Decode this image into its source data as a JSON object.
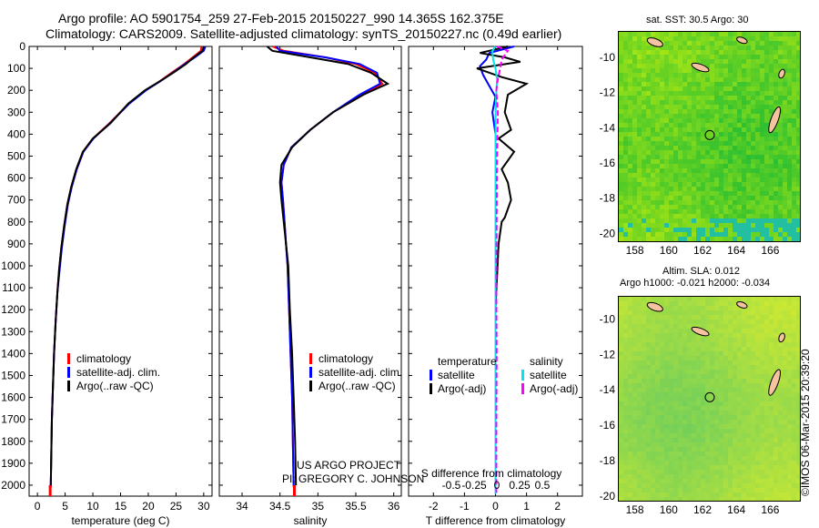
{
  "header": {
    "line1": "Argo profile: AO 5901754_259 27-Feb-2015 20150227_990 14.365S 162.375E",
    "line2": "Climatology: CARS2009. Satellite-adjusted climatology: synTS_20150227.nc (0.49d earlier)"
  },
  "credit": "©IMOS 06-Mar-2015 20:39:20",
  "project_note": {
    "line1": "US ARGO PROJECT",
    "line2": "PI: GREGORY C. JOHNSON"
  },
  "colors": {
    "climatology": "#ff0000",
    "satellite_adj": "#0000ff",
    "argo": "#000000",
    "sal_satellite": "#00e5ee",
    "sal_argo": "#ff00ff"
  },
  "chart_data": [
    {
      "type": "line",
      "id": "temperature",
      "xlabel": "temperature (deg C)",
      "ylabel": "",
      "xlim": [
        -1.5,
        31.5
      ],
      "ylim": [
        2050,
        0
      ],
      "x_ticks": [
        0,
        5,
        10,
        15,
        20,
        25,
        30
      ],
      "y_ticks": [
        0,
        100,
        200,
        300,
        400,
        500,
        600,
        700,
        800,
        900,
        1000,
        1100,
        1200,
        1300,
        1400,
        1500,
        1600,
        1700,
        1800,
        1900,
        2000
      ],
      "legend": [
        "climatology",
        "satellite-adj. clim.",
        "Argo(..raw -QC)"
      ],
      "series": [
        {
          "name": "climatology",
          "color": "#ff0000",
          "x": [
            29.6,
            29.5,
            28.0,
            26.5,
            24.2,
            22.0,
            19.5,
            16.5,
            13.0,
            10.0,
            8.2,
            7.0,
            6.1,
            5.4,
            4.8,
            4.3,
            3.9,
            3.6,
            3.3,
            3.0,
            2.8,
            2.6,
            2.5,
            2.4,
            2.3
          ],
          "y": [
            0,
            20,
            50,
            80,
            120,
            160,
            200,
            260,
            350,
            420,
            480,
            560,
            640,
            720,
            820,
            920,
            1020,
            1120,
            1250,
            1400,
            1550,
            1700,
            1850,
            2000,
            2040
          ]
        },
        {
          "name": "satellite-adj. clim.",
          "color": "#0000ff",
          "x": [
            30.3,
            30.0,
            28.4,
            26.6,
            24.4,
            22.1,
            19.6,
            16.6,
            13.1,
            10.1,
            8.3,
            7.1,
            6.2,
            5.5,
            4.9,
            4.4,
            4.0,
            3.6,
            3.3,
            3.0,
            2.8,
            2.6,
            2.5,
            2.4,
            2.3
          ],
          "y": [
            0,
            20,
            50,
            80,
            120,
            160,
            200,
            260,
            350,
            420,
            480,
            560,
            640,
            720,
            820,
            920,
            1020,
            1120,
            1250,
            1400,
            1550,
            1700,
            1850,
            2000,
            2040
          ]
        },
        {
          "name": "Argo(..raw -QC)",
          "color": "#000000",
          "x": [
            30.0,
            29.8,
            28.2,
            26.8,
            24.5,
            22.0,
            19.4,
            16.4,
            13.2,
            10.0,
            8.2,
            7.0,
            6.1,
            5.4,
            4.8,
            4.3,
            3.9,
            3.6,
            3.3,
            3.0,
            2.8,
            2.6,
            2.5,
            2.4
          ],
          "y": [
            0,
            20,
            50,
            80,
            120,
            160,
            200,
            260,
            350,
            420,
            480,
            560,
            640,
            720,
            820,
            920,
            1020,
            1120,
            1250,
            1400,
            1550,
            1700,
            1850,
            2000
          ]
        }
      ]
    },
    {
      "type": "line",
      "id": "salinity",
      "xlabel": "salinity",
      "xlim": [
        33.7,
        36.1
      ],
      "ylim": [
        2050,
        0
      ],
      "x_ticks": [
        34,
        34.5,
        35,
        35.5,
        36
      ],
      "legend": [
        "climatology",
        "satellite-adj. clim.",
        "Argo(..raw -QC)"
      ],
      "series": [
        {
          "name": "climatology",
          "color": "#ff0000",
          "x": [
            34.4,
            34.55,
            35.1,
            35.5,
            35.75,
            35.85,
            35.6,
            35.2,
            34.9,
            34.65,
            34.55,
            34.52,
            34.54,
            34.56,
            34.58,
            34.6,
            34.62,
            34.64,
            34.66,
            34.67,
            34.68,
            34.69
          ],
          "y": [
            0,
            20,
            50,
            80,
            120,
            170,
            220,
            300,
            380,
            460,
            540,
            620,
            700,
            800,
            900,
            1000,
            1200,
            1400,
            1600,
            1800,
            2000,
            2040
          ]
        },
        {
          "name": "satellite-adj. clim.",
          "color": "#0000ff",
          "x": [
            34.45,
            34.5,
            35.1,
            35.55,
            35.78,
            35.82,
            35.55,
            35.2,
            34.9,
            34.65,
            34.55,
            34.52,
            34.54,
            34.56,
            34.58,
            34.6,
            34.62,
            34.64,
            34.66,
            34.67,
            34.68,
            34.69
          ],
          "y": [
            0,
            20,
            50,
            80,
            120,
            170,
            220,
            300,
            380,
            460,
            540,
            620,
            700,
            800,
            900,
            1000,
            1200,
            1400,
            1600,
            1800,
            2000,
            2040
          ]
        },
        {
          "name": "Argo(..raw -QC)",
          "color": "#000000",
          "x": [
            34.33,
            34.4,
            34.9,
            35.4,
            35.7,
            35.92,
            35.6,
            35.2,
            34.9,
            34.66,
            34.52,
            34.5,
            34.52,
            34.55,
            34.58,
            34.61,
            34.63,
            34.66,
            34.68,
            34.7,
            34.71
          ],
          "y": [
            0,
            20,
            50,
            80,
            120,
            170,
            220,
            300,
            380,
            460,
            540,
            620,
            700,
            800,
            900,
            1000,
            1200,
            1400,
            1600,
            1800,
            2000
          ]
        }
      ]
    },
    {
      "type": "line",
      "id": "differences",
      "xlabel": "T difference from climatology",
      "secondary_xlabel": "S difference from climatology",
      "xlim": [
        -2.8,
        2.8
      ],
      "ylim": [
        2050,
        0
      ],
      "x_ticks": [
        -2,
        -1,
        0,
        1,
        2
      ],
      "secondary_x_ticks": [
        {
          "v": -0.5,
          "label": "-0.5"
        },
        {
          "v": -0.25,
          "label": "-0.25"
        },
        {
          "v": 0,
          "label": "0"
        },
        {
          "v": 0.25,
          "label": "0.25"
        },
        {
          "v": 0.5,
          "label": "0.5"
        }
      ],
      "legend_temperature": [
        "temperature",
        "satellite",
        "Argo(-adj)"
      ],
      "legend_salinity": [
        "salinity",
        "satellite",
        "Argo(-adj)"
      ],
      "series": [
        {
          "name": "temperature satellite",
          "color": "#0000ff",
          "x": [
            0.6,
            -0.2,
            -0.3,
            -0.5,
            -0.4,
            -0.2,
            0,
            -0.1,
            0,
            0,
            0,
            0,
            0,
            0,
            0
          ],
          "y": [
            0,
            30,
            60,
            90,
            130,
            180,
            230,
            300,
            400,
            600,
            800,
            1000,
            1400,
            1800,
            2040
          ]
        },
        {
          "name": "temperature Argo(-adj)",
          "color": "#000000",
          "x": [
            0.4,
            -0.5,
            0.3,
            0.8,
            -0.6,
            0.2,
            1.0,
            0.4,
            0.3,
            0.5,
            0.1,
            0.6,
            0.2,
            0.4,
            0.5,
            0.3,
            0.2,
            0.1,
            0,
            0
          ],
          "y": [
            0,
            30,
            50,
            70,
            100,
            140,
            170,
            220,
            300,
            380,
            420,
            480,
            560,
            620,
            700,
            780,
            800,
            900,
            1200,
            1400
          ]
        },
        {
          "name": "salinity satellite",
          "color": "#00e5ee",
          "x": [
            0,
            -0.4,
            -0.3,
            0,
            0.2,
            0.05,
            0,
            0,
            0,
            0
          ],
          "y": [
            0,
            20,
            60,
            100,
            150,
            250,
            400,
            800,
            1400,
            2040
          ]
        },
        {
          "name": "salinity Argo(-adj)",
          "color": "#ff00ff",
          "x": [
            0.2,
            1.6,
            0.8,
            0.6,
            0.3,
            0.1,
            0.3,
            0.2,
            0.15,
            0.1,
            0.15,
            0.1,
            0.12
          ],
          "y": [
            0,
            20,
            60,
            100,
            150,
            200,
            300,
            500,
            800,
            1100,
            1400,
            1800,
            2040
          ]
        }
      ]
    }
  ],
  "maps": {
    "sst": {
      "title": "sat. SST: 30.5 Argo: 30",
      "lat_ticks": [
        -10,
        -12,
        -14,
        -16,
        -18,
        -20
      ],
      "lon_ticks": [
        158,
        160,
        162,
        164,
        166
      ],
      "lon_range": [
        157,
        167.7
      ],
      "lat_range": [
        -20.4,
        -8.5
      ],
      "argo_position": {
        "lon": 162.375,
        "lat": -14.365
      }
    },
    "sla": {
      "title_line1": "Altim. SLA: 0.012",
      "title_line2": "Argo h1000: -0.021 h2000: -0.034",
      "lat_ticks": [
        -10,
        -12,
        -14,
        -16,
        -18,
        -20
      ],
      "lon_ticks": [
        158,
        160,
        162,
        164,
        166
      ],
      "lon_range": [
        157,
        167.7
      ],
      "lat_range": [
        -20.2,
        -8.7
      ],
      "argo_position": {
        "lon": 162.375,
        "lat": -14.365
      }
    }
  }
}
